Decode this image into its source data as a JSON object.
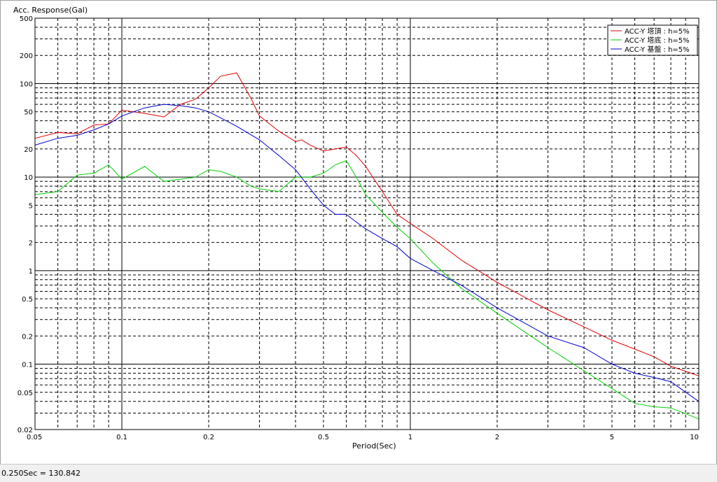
{
  "status": {
    "readout": "0.250Sec = 130.842"
  },
  "chart_data": {
    "type": "line",
    "title": "",
    "xlabel": "Period(Sec)",
    "ylabel": "Acc. Response(Gal)",
    "xscale": "log",
    "yscale": "log",
    "xlim": [
      0.05,
      10
    ],
    "ylim": [
      0.02,
      500
    ],
    "x_ticks": [
      "0.05",
      "0.1",
      "0.2",
      "0.5",
      "1",
      "2",
      "5",
      "10"
    ],
    "y_ticks": [
      "0.02",
      "0.05",
      "0.1",
      "0.2",
      "0.5",
      "1",
      "2",
      "5",
      "10",
      "20",
      "50",
      "100",
      "200",
      "500"
    ],
    "grid": true,
    "legend_position": "top-right",
    "series": [
      {
        "name": "ACC-Y 塔頂 : h=5%",
        "color": "#e00000",
        "x": [
          0.05,
          0.06,
          0.07,
          0.08,
          0.09,
          0.1,
          0.12,
          0.14,
          0.16,
          0.18,
          0.2,
          0.22,
          0.25,
          0.28,
          0.3,
          0.35,
          0.4,
          0.42,
          0.45,
          0.5,
          0.55,
          0.6,
          0.65,
          0.7,
          0.8,
          0.9,
          1,
          1.2,
          1.5,
          2,
          3,
          4,
          5,
          6,
          7,
          8,
          10
        ],
        "y": [
          26,
          30,
          29,
          36,
          37,
          52,
          48,
          44,
          60,
          68,
          90,
          120,
          130,
          70,
          45,
          31,
          24,
          25,
          22,
          19,
          20,
          21,
          17,
          13,
          7,
          4,
          3.2,
          2.2,
          1.3,
          0.75,
          0.38,
          0.25,
          0.18,
          0.145,
          0.12,
          0.095,
          0.075
        ]
      },
      {
        "name": "ACC-Y 塔底 : h=5%",
        "color": "#00d000",
        "x": [
          0.05,
          0.06,
          0.07,
          0.08,
          0.09,
          0.1,
          0.12,
          0.14,
          0.16,
          0.18,
          0.2,
          0.22,
          0.25,
          0.28,
          0.3,
          0.35,
          0.4,
          0.45,
          0.5,
          0.55,
          0.6,
          0.65,
          0.7,
          0.8,
          0.9,
          1,
          1.2,
          1.5,
          2,
          3,
          4,
          5,
          6,
          7,
          8,
          10
        ],
        "y": [
          6.5,
          7,
          10.5,
          11,
          13.5,
          9.5,
          13,
          9,
          9.5,
          10,
          12,
          11.5,
          10,
          8,
          7.5,
          7,
          10,
          10,
          11,
          13.5,
          15,
          10,
          6.5,
          4.2,
          2.9,
          2.2,
          1.2,
          0.65,
          0.35,
          0.15,
          0.085,
          0.055,
          0.038,
          0.035,
          0.034,
          0.026
        ]
      },
      {
        "name": "ACC-Y 基盤 : h=5%",
        "color": "#0000d0",
        "x": [
          0.05,
          0.06,
          0.07,
          0.08,
          0.09,
          0.1,
          0.12,
          0.14,
          0.16,
          0.18,
          0.2,
          0.25,
          0.3,
          0.35,
          0.4,
          0.45,
          0.5,
          0.55,
          0.6,
          0.65,
          0.7,
          0.8,
          0.9,
          1,
          1.2,
          1.5,
          2,
          3,
          4,
          5,
          6,
          7,
          8,
          10
        ],
        "y": [
          22,
          26,
          28,
          32,
          37,
          45,
          55,
          60,
          58,
          55,
          50,
          35,
          25,
          17,
          12,
          7.5,
          5,
          4,
          4,
          3.3,
          2.8,
          2.2,
          1.8,
          1.35,
          1,
          0.7,
          0.4,
          0.2,
          0.15,
          0.1,
          0.08,
          0.072,
          0.065,
          0.04
        ]
      }
    ]
  }
}
